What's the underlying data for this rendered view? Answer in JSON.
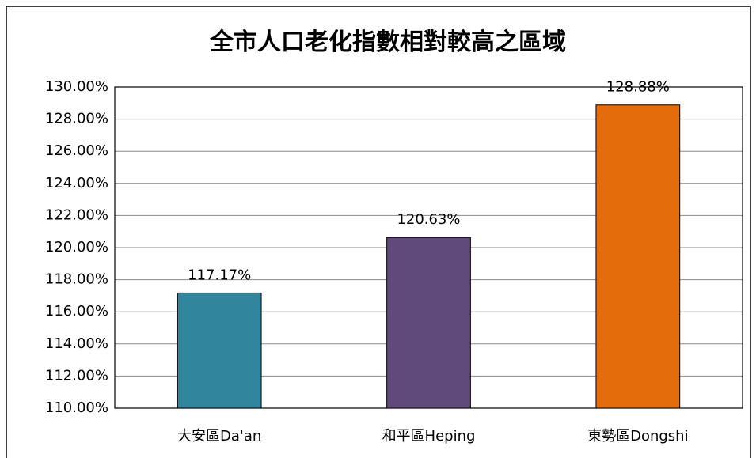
{
  "chart_data": {
    "type": "bar",
    "title": "全市人口老化指數相對較高之區域",
    "categories": [
      "大安區Da'an",
      "和平區Heping",
      "東勢區Dongshi"
    ],
    "values": [
      117.17,
      120.63,
      128.88
    ],
    "value_labels": [
      "117.17%",
      "120.63%",
      "128.88%"
    ],
    "colors": [
      "#31859c",
      "#604a7b",
      "#e46c0a"
    ],
    "ylim": [
      110,
      130
    ],
    "yticks": [
      {
        "value": 110,
        "label": "110.00%"
      },
      {
        "value": 112,
        "label": "112.00%"
      },
      {
        "value": 114,
        "label": "114.00%"
      },
      {
        "value": 116,
        "label": "116.00%"
      },
      {
        "value": 118,
        "label": "118.00%"
      },
      {
        "value": 120,
        "label": "120.00%"
      },
      {
        "value": 122,
        "label": "122.00%"
      },
      {
        "value": 124,
        "label": "124.00%"
      },
      {
        "value": 126,
        "label": "126.00%"
      },
      {
        "value": 128,
        "label": "128.00%"
      },
      {
        "value": 130,
        "label": "130.00%"
      }
    ],
    "grid": true
  }
}
